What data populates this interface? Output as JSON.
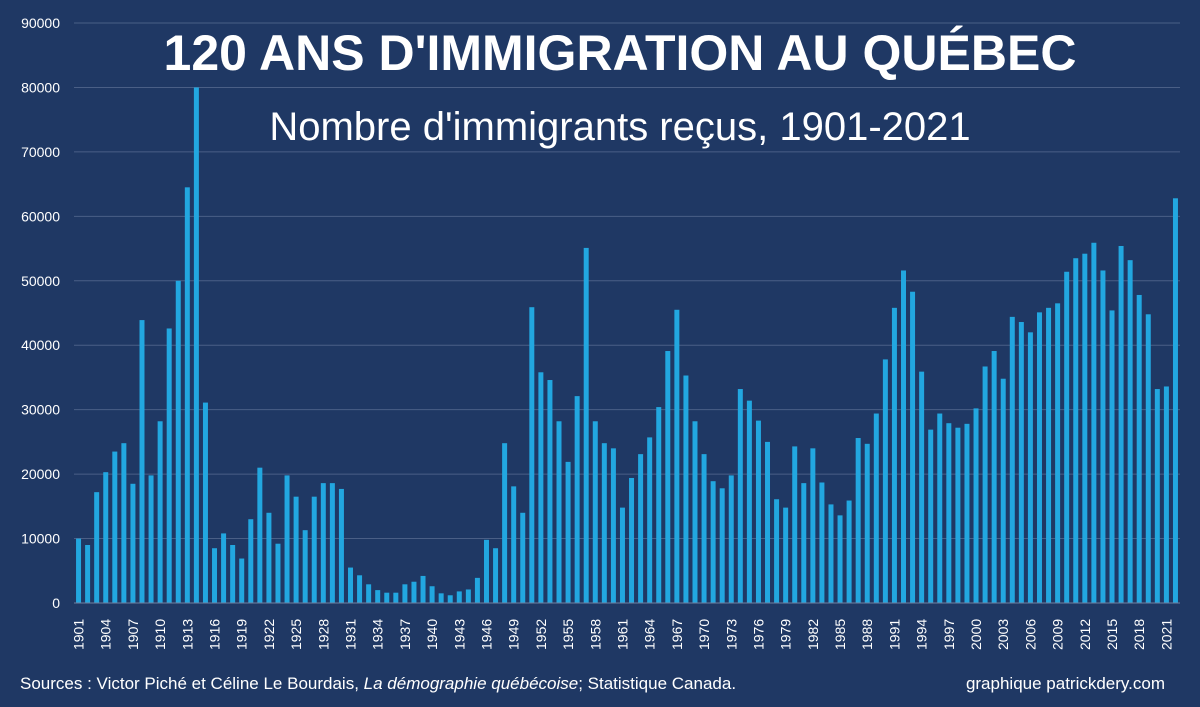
{
  "chart_data": {
    "type": "bar",
    "title": "120 ANS D'IMMIGRATION AU QUÉBEC",
    "subtitle": "Nombre d'immigrants reçus, 1901-2021",
    "xlabel": "",
    "ylabel": "",
    "ylim": [
      0,
      90000
    ],
    "y_ticks": [
      "0",
      "10000",
      "20000",
      "30000",
      "40000",
      "50000",
      "60000",
      "70000",
      "80000",
      "90000"
    ],
    "x_tick_labels": [
      "1901",
      "1904",
      "1907",
      "1910",
      "1913",
      "1916",
      "1919",
      "1922",
      "1925",
      "1928",
      "1931",
      "1934",
      "1937",
      "1940",
      "1943",
      "1946",
      "1949",
      "1952",
      "1955",
      "1958",
      "1961",
      "1964",
      "1967",
      "1970",
      "1973",
      "1976",
      "1979",
      "1982",
      "1985",
      "1988",
      "1991",
      "1994",
      "1997",
      "2000",
      "2003",
      "2006",
      "2009",
      "2012",
      "2015",
      "2018",
      "2021"
    ],
    "grid": true,
    "bar_color": "#22a7e0",
    "x_start": 1901,
    "values": [
      10000,
      9000,
      17200,
      20300,
      23500,
      24800,
      18500,
      43900,
      19800,
      28200,
      42600,
      50000,
      64500,
      80000,
      31100,
      8500,
      10800,
      9000,
      6900,
      13000,
      21000,
      14000,
      9200,
      19800,
      16500,
      11300,
      16500,
      18600,
      18600,
      17700,
      5500,
      4300,
      2900,
      2000,
      1600,
      1600,
      2900,
      3300,
      4200,
      2600,
      1500,
      1200,
      1800,
      2100,
      3900,
      9800,
      8500,
      24800,
      18100,
      14000,
      45900,
      35800,
      34600,
      28200,
      21900,
      32100,
      55100,
      28200,
      24800,
      24000,
      14800,
      19400,
      23100,
      25700,
      30400,
      39100,
      45500,
      35300,
      28200,
      23100,
      18900,
      17800,
      19800,
      33200,
      31400,
      28300,
      25000,
      16100,
      14800,
      24300,
      18600,
      24000,
      18700,
      15300,
      13600,
      15900,
      25600,
      24700,
      29400,
      37800,
      45800,
      51600,
      48300,
      35900,
      26900,
      29400,
      27900,
      27200,
      27800,
      30200,
      36700,
      39100,
      34800,
      44400,
      43600,
      42000,
      45100,
      45800,
      46500,
      51400,
      53500,
      54200,
      55900,
      51600,
      45400,
      55400,
      53200,
      47800,
      44800,
      33200,
      33600,
      62800
    ]
  },
  "footer": {
    "source_prefix": "Sources : Victor Piché et Céline Le Bourdais, ",
    "source_italic": "La démographie québécoise",
    "source_suffix": "; Statistique Canada.",
    "credit": "graphique patrickdery.com"
  },
  "colors": {
    "background": "#1f3864",
    "bar": "#22a7e0",
    "grid": "#4a5f86",
    "text": "#ffffff"
  }
}
